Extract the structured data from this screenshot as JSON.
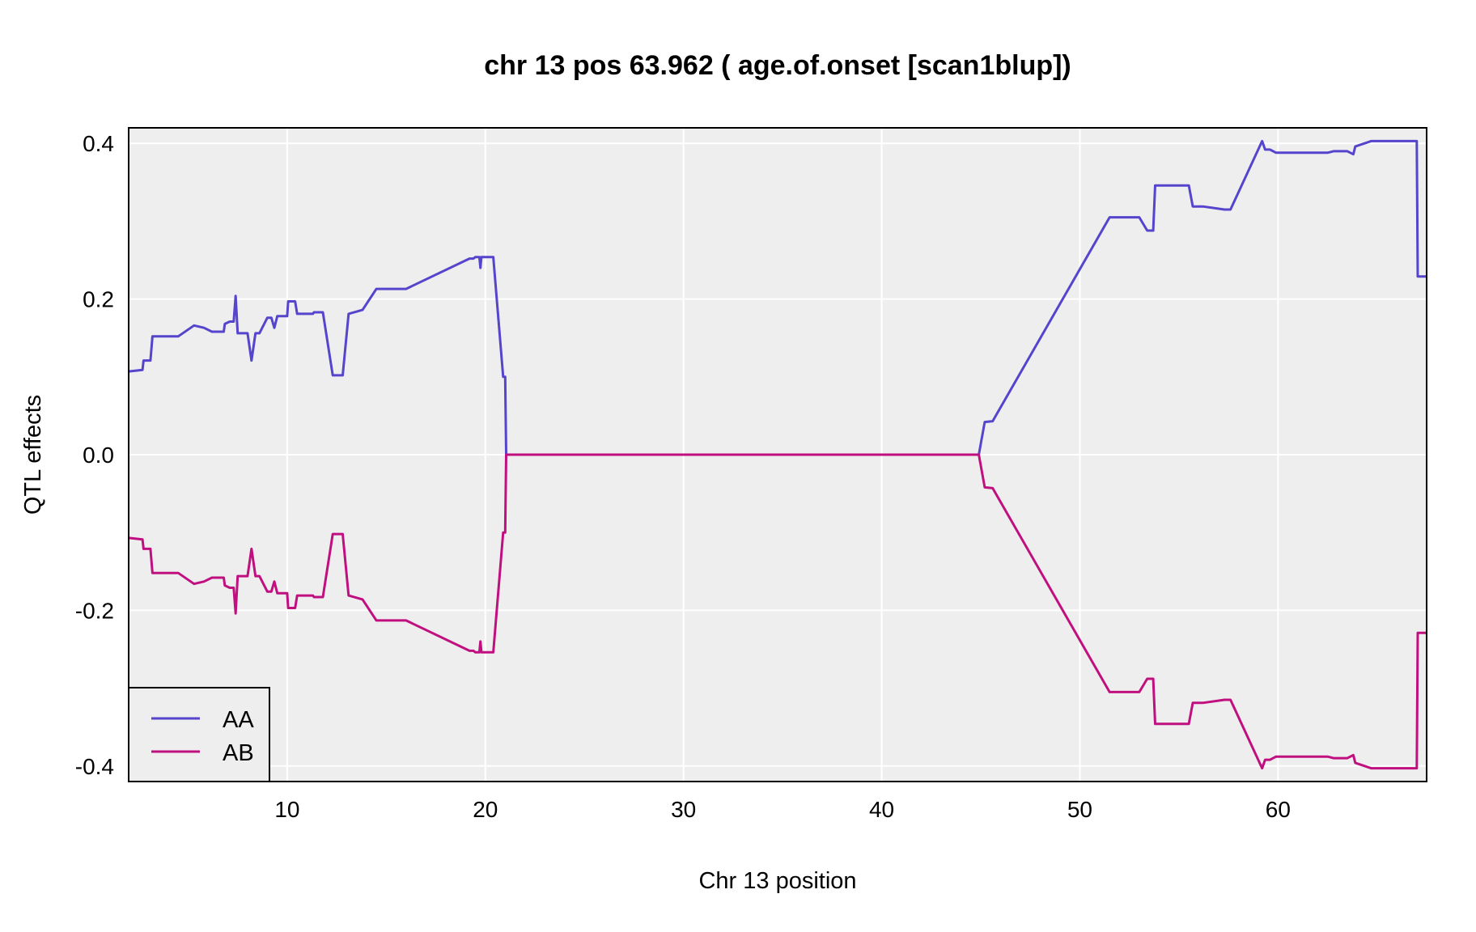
{
  "chart_data": {
    "type": "line",
    "title": "chr 13 pos 63.962 ( age.of.onset  [scan1blup])",
    "xlabel": "Chr 13 position",
    "ylabel": "QTL effects",
    "xlim": [
      2,
      67.5
    ],
    "ylim": [
      -0.42,
      0.42
    ],
    "x_ticks": [
      10,
      20,
      30,
      40,
      50,
      60
    ],
    "x_tick_labels": [
      "10",
      "20",
      "30",
      "40",
      "50",
      "60"
    ],
    "y_ticks": [
      -0.4,
      -0.2,
      0.0,
      0.2,
      0.4
    ],
    "y_tick_labels": [
      "-0.4",
      "-0.2",
      "0.0",
      "0.2",
      "0.4"
    ],
    "grid": true,
    "legend_position": "bottom-left",
    "series": [
      {
        "name": "AA",
        "color": "#5544cc",
        "points": [
          [
            2.0,
            0.107
          ],
          [
            2.7,
            0.109
          ],
          [
            2.75,
            0.121
          ],
          [
            3.1,
            0.121
          ],
          [
            3.2,
            0.152
          ],
          [
            4.5,
            0.152
          ],
          [
            5.3,
            0.166
          ],
          [
            5.8,
            0.163
          ],
          [
            6.2,
            0.158
          ],
          [
            6.8,
            0.158
          ],
          [
            6.85,
            0.168
          ],
          [
            7.1,
            0.171
          ],
          [
            7.3,
            0.171
          ],
          [
            7.4,
            0.204
          ],
          [
            7.5,
            0.156
          ],
          [
            8.0,
            0.156
          ],
          [
            8.2,
            0.121
          ],
          [
            8.4,
            0.156
          ],
          [
            8.6,
            0.156
          ],
          [
            9.0,
            0.176
          ],
          [
            9.2,
            0.176
          ],
          [
            9.35,
            0.163
          ],
          [
            9.5,
            0.178
          ],
          [
            10.0,
            0.178
          ],
          [
            10.05,
            0.197
          ],
          [
            10.4,
            0.197
          ],
          [
            10.5,
            0.181
          ],
          [
            11.3,
            0.181
          ],
          [
            11.35,
            0.183
          ],
          [
            11.8,
            0.183
          ],
          [
            12.3,
            0.102
          ],
          [
            12.8,
            0.102
          ],
          [
            13.1,
            0.181
          ],
          [
            13.8,
            0.186
          ],
          [
            14.5,
            0.213
          ],
          [
            16.0,
            0.213
          ],
          [
            19.2,
            0.252
          ],
          [
            19.4,
            0.252
          ],
          [
            19.5,
            0.254
          ],
          [
            19.7,
            0.254
          ],
          [
            19.75,
            0.24
          ],
          [
            19.8,
            0.254
          ],
          [
            20.4,
            0.254
          ],
          [
            20.9,
            0.1
          ],
          [
            21.0,
            0.1
          ],
          [
            21.05,
            0.0
          ],
          [
            44.9,
            0.0
          ],
          [
            45.2,
            0.042
          ],
          [
            45.6,
            0.043
          ],
          [
            51.5,
            0.305
          ],
          [
            53.0,
            0.305
          ],
          [
            53.4,
            0.288
          ],
          [
            53.7,
            0.288
          ],
          [
            53.8,
            0.346
          ],
          [
            55.5,
            0.346
          ],
          [
            55.7,
            0.319
          ],
          [
            56.2,
            0.319
          ],
          [
            57.3,
            0.315
          ],
          [
            57.6,
            0.315
          ],
          [
            59.2,
            0.403
          ],
          [
            59.35,
            0.392
          ],
          [
            59.6,
            0.392
          ],
          [
            59.9,
            0.388
          ],
          [
            62.5,
            0.388
          ],
          [
            62.8,
            0.39
          ],
          [
            63.5,
            0.39
          ],
          [
            63.8,
            0.386
          ],
          [
            63.9,
            0.396
          ],
          [
            64.7,
            0.403
          ],
          [
            67.0,
            0.403
          ],
          [
            67.05,
            0.229
          ],
          [
            67.5,
            0.229
          ]
        ]
      },
      {
        "name": "AB",
        "color": "#c0107f",
        "points": [
          [
            2.0,
            -0.107
          ],
          [
            2.7,
            -0.109
          ],
          [
            2.75,
            -0.121
          ],
          [
            3.1,
            -0.121
          ],
          [
            3.2,
            -0.152
          ],
          [
            4.5,
            -0.152
          ],
          [
            5.3,
            -0.166
          ],
          [
            5.8,
            -0.163
          ],
          [
            6.2,
            -0.158
          ],
          [
            6.8,
            -0.158
          ],
          [
            6.85,
            -0.168
          ],
          [
            7.1,
            -0.171
          ],
          [
            7.3,
            -0.171
          ],
          [
            7.4,
            -0.204
          ],
          [
            7.5,
            -0.156
          ],
          [
            8.0,
            -0.156
          ],
          [
            8.2,
            -0.121
          ],
          [
            8.4,
            -0.156
          ],
          [
            8.6,
            -0.156
          ],
          [
            9.0,
            -0.176
          ],
          [
            9.2,
            -0.176
          ],
          [
            9.35,
            -0.163
          ],
          [
            9.5,
            -0.178
          ],
          [
            10.0,
            -0.178
          ],
          [
            10.05,
            -0.197
          ],
          [
            10.4,
            -0.197
          ],
          [
            10.5,
            -0.181
          ],
          [
            11.3,
            -0.181
          ],
          [
            11.35,
            -0.183
          ],
          [
            11.8,
            -0.183
          ],
          [
            12.3,
            -0.102
          ],
          [
            12.8,
            -0.102
          ],
          [
            13.1,
            -0.181
          ],
          [
            13.8,
            -0.186
          ],
          [
            14.5,
            -0.213
          ],
          [
            16.0,
            -0.213
          ],
          [
            19.2,
            -0.252
          ],
          [
            19.4,
            -0.252
          ],
          [
            19.5,
            -0.254
          ],
          [
            19.7,
            -0.254
          ],
          [
            19.75,
            -0.24
          ],
          [
            19.8,
            -0.254
          ],
          [
            20.4,
            -0.254
          ],
          [
            20.9,
            -0.1
          ],
          [
            21.0,
            -0.1
          ],
          [
            21.05,
            0.0
          ],
          [
            44.9,
            0.0
          ],
          [
            45.2,
            -0.042
          ],
          [
            45.6,
            -0.043
          ],
          [
            51.5,
            -0.305
          ],
          [
            53.0,
            -0.305
          ],
          [
            53.4,
            -0.288
          ],
          [
            53.7,
            -0.288
          ],
          [
            53.8,
            -0.346
          ],
          [
            55.5,
            -0.346
          ],
          [
            55.7,
            -0.319
          ],
          [
            56.2,
            -0.319
          ],
          [
            57.3,
            -0.315
          ],
          [
            57.6,
            -0.315
          ],
          [
            59.2,
            -0.403
          ],
          [
            59.35,
            -0.392
          ],
          [
            59.6,
            -0.392
          ],
          [
            59.9,
            -0.388
          ],
          [
            62.5,
            -0.388
          ],
          [
            62.8,
            -0.39
          ],
          [
            63.5,
            -0.39
          ],
          [
            63.8,
            -0.386
          ],
          [
            63.9,
            -0.396
          ],
          [
            64.7,
            -0.403
          ],
          [
            67.0,
            -0.403
          ],
          [
            67.05,
            -0.229
          ],
          [
            67.5,
            -0.229
          ]
        ]
      }
    ]
  },
  "colors": {
    "panel_background": "#efeeef",
    "grid": "#ffffff",
    "AA": "#5544cc",
    "AB": "#c0107f"
  }
}
